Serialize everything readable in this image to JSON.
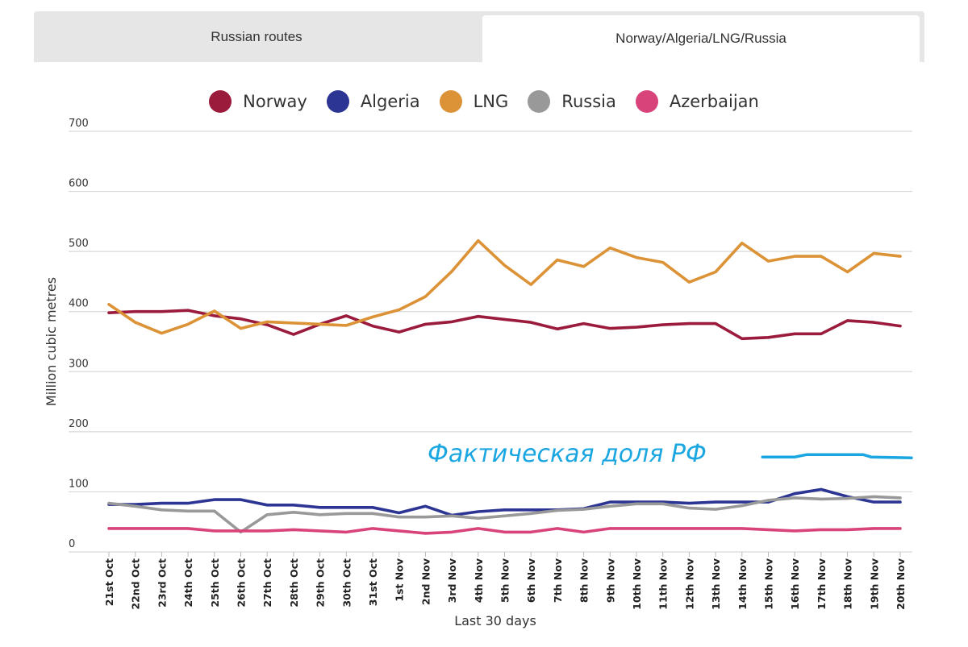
{
  "tabs": [
    {
      "label": "Russian routes"
    },
    {
      "label": "Norway/Algeria/LNG/Russia"
    }
  ],
  "chart_data": {
    "type": "line",
    "xlabel": "Last 30 days",
    "ylabel": "Million cubic metres",
    "ylim": [
      0,
      700
    ],
    "yticks": [
      0,
      100,
      200,
      300,
      400,
      500,
      600,
      700
    ],
    "grid": true,
    "legend_position": "top-center",
    "categories": [
      "21st Oct",
      "22nd Oct",
      "23rd Oct",
      "24th Oct",
      "25th Oct",
      "26th Oct",
      "27th Oct",
      "28th Oct",
      "29th Oct",
      "30th Oct",
      "31st Oct",
      "1st Nov",
      "2nd Nov",
      "3rd Nov",
      "4th Nov",
      "5th Nov",
      "6th Nov",
      "7th Nov",
      "8th Nov",
      "9th Nov",
      "10th Nov",
      "11th Nov",
      "12th Nov",
      "13th Nov",
      "14th Nov",
      "15th Nov",
      "16th Nov",
      "17th Nov",
      "18th Nov",
      "19th Nov",
      "20th Nov"
    ],
    "series": [
      {
        "name": "Norway",
        "color": "#9b1b3d",
        "values": [
          398,
          400,
          400,
          402,
          393,
          388,
          378,
          362,
          379,
          393,
          376,
          366,
          379,
          383,
          392,
          387,
          382,
          371,
          380,
          372,
          374,
          378,
          380,
          380,
          355,
          357,
          363,
          363,
          385,
          382,
          376
        ]
      },
      {
        "name": "Algeria",
        "color": "#2c3593",
        "values": [
          79,
          79,
          81,
          81,
          87,
          87,
          78,
          78,
          74,
          74,
          74,
          65,
          76,
          61,
          67,
          70,
          70,
          70,
          72,
          83,
          83,
          83,
          81,
          83,
          83,
          83,
          97,
          104,
          92,
          83,
          83
        ]
      },
      {
        "name": "LNG",
        "color": "#dc9236",
        "values": [
          412,
          382,
          364,
          379,
          401,
          372,
          383,
          381,
          379,
          377,
          391,
          403,
          425,
          467,
          518,
          477,
          445,
          486,
          475,
          506,
          490,
          482,
          449,
          466,
          514,
          484,
          492,
          492,
          466,
          497,
          492
        ]
      },
      {
        "name": "Russia",
        "color": "#999999",
        "values": [
          81,
          76,
          70,
          68,
          68,
          33,
          62,
          66,
          62,
          64,
          64,
          58,
          58,
          60,
          56,
          60,
          64,
          69,
          71,
          76,
          80,
          80,
          73,
          71,
          77,
          86,
          90,
          88,
          89,
          92,
          90
        ]
      },
      {
        "name": "Azerbaijan",
        "color": "#d8437a",
        "values": [
          39,
          39,
          39,
          39,
          35,
          35,
          35,
          37,
          35,
          33,
          39,
          35,
          31,
          33,
          39,
          33,
          33,
          39,
          33,
          39,
          39,
          39,
          39,
          39,
          39,
          37,
          35,
          37,
          37,
          39,
          39
        ]
      }
    ],
    "annotation": {
      "text": "Фактическая доля РФ",
      "color": "#1aa6e0",
      "line_x_range": [
        "16th Nov",
        "20th Nov"
      ],
      "line_y": 162
    }
  }
}
